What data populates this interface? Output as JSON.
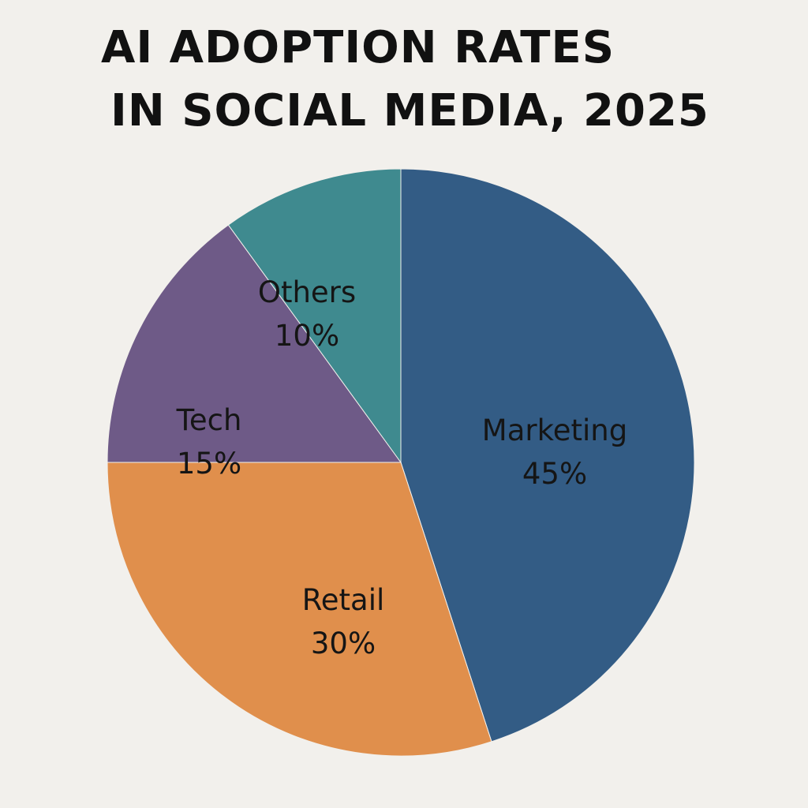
{
  "chart_data": {
    "type": "pie",
    "title": [
      "AI ADOPTION RATES",
      "IN SOCIAL MEDIA, 2025"
    ],
    "slices": [
      {
        "label": "Marketing",
        "value": 45,
        "display": "45%",
        "color": "#335c85"
      },
      {
        "label": "Retail",
        "value": 30,
        "display": "30%",
        "color": "#e08f4c"
      },
      {
        "label": "Tech",
        "value": 15,
        "display": "15%",
        "color": "#6e5a87"
      },
      {
        "label": "Others",
        "value": 10,
        "display": "10%",
        "color": "#3f8a8f"
      }
    ],
    "start_angle": "12 o'clock",
    "direction": "clockwise",
    "legend": "none",
    "background": "#f2f0ec"
  }
}
